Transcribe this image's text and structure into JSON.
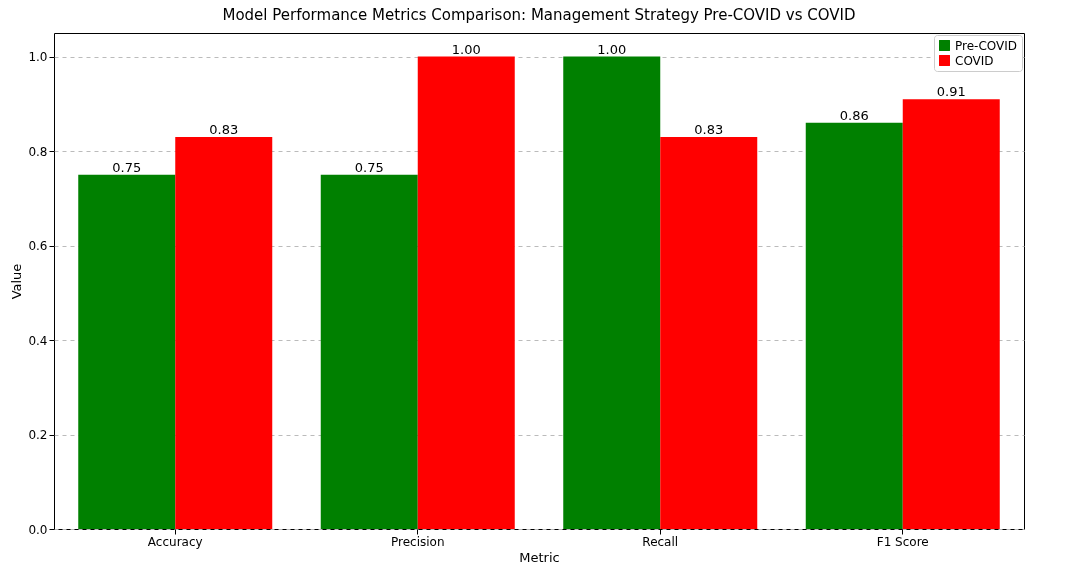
{
  "chart_data": {
    "type": "bar",
    "title": "Model Performance Metrics Comparison: Management Strategy Pre-COVID vs COVID",
    "xlabel": "Metric",
    "ylabel": "Value",
    "categories": [
      "Accuracy",
      "Precision",
      "Recall",
      "F1 Score"
    ],
    "series": [
      {
        "name": "Pre-COVID",
        "color": "#008000",
        "values": [
          0.75,
          0.75,
          1.0,
          0.86
        ],
        "value_labels": [
          "0.75",
          "0.75",
          "1.00",
          "0.86"
        ]
      },
      {
        "name": "COVID",
        "color": "#ff0000",
        "values": [
          0.83,
          1.0,
          0.83,
          0.91
        ],
        "value_labels": [
          "0.83",
          "1.00",
          "0.83",
          "0.91"
        ]
      }
    ],
    "ylim": [
      0,
      1.05
    ],
    "yticks": [
      {
        "value": 0,
        "label": "0.0"
      },
      {
        "value": 0.2,
        "label": "0.2"
      },
      {
        "value": 0.4,
        "label": "0.4"
      },
      {
        "value": 0.6,
        "label": "0.6"
      },
      {
        "value": 0.8,
        "label": "0.8"
      },
      {
        "value": 1,
        "label": "1.0"
      }
    ],
    "grid": "y",
    "legend": "top right"
  }
}
